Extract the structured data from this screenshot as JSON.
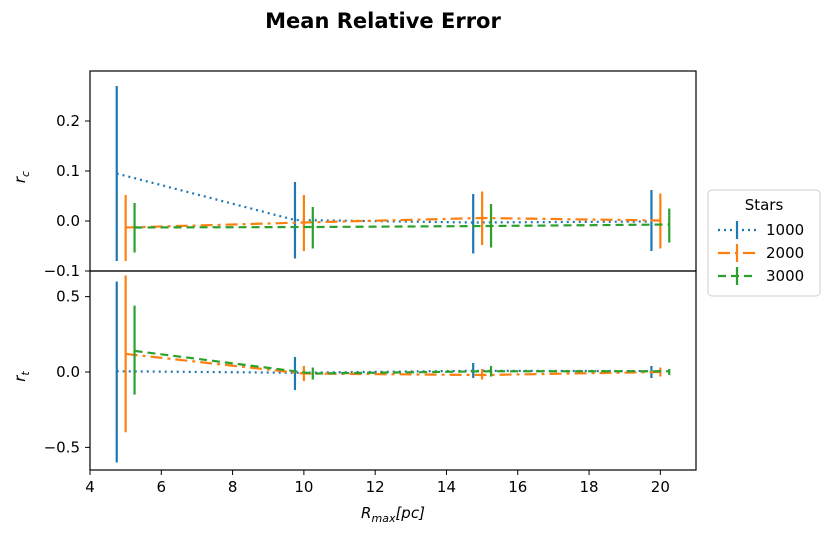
{
  "chart_data": {
    "type": "line",
    "title": "Mean Relative Error",
    "xlabel_main": "R",
    "xlabel_sub": "max",
    "xlabel_unit": "[pc]",
    "xlim": [
      4,
      21
    ],
    "xticks": [
      4,
      6,
      8,
      10,
      12,
      14,
      16,
      18,
      20
    ],
    "legend": {
      "title": "Stars",
      "placement": "outside-right"
    },
    "series_styles": [
      {
        "name": "1000",
        "color": "#1f77b4",
        "dash": "2,4"
      },
      {
        "name": "2000",
        "color": "#ff7f0e",
        "dash": "12,5,3,5"
      },
      {
        "name": "3000",
        "color": "#2ca02c",
        "dash": "8,5"
      }
    ],
    "panels": [
      {
        "id": "rc",
        "ylabel_main": "r",
        "ylabel_sub": "c",
        "ylim": [
          -0.1,
          0.3
        ],
        "yticks": [
          -0.1,
          0.0,
          0.1,
          0.2
        ],
        "ytick_labels": [
          "−0.1",
          "0.0",
          "0.1",
          "0.2"
        ],
        "series": [
          {
            "name": "1000",
            "x": [
              4.75,
              9.75,
              14.75,
              19.75
            ],
            "y": [
              0.095,
              0.002,
              -0.003,
              -0.001
            ],
            "err_low": [
              -0.08,
              -0.075,
              -0.065,
              -0.06
            ],
            "err_high": [
              0.27,
              0.078,
              0.054,
              0.062
            ]
          },
          {
            "name": "2000",
            "x": [
              5.0,
              10.0,
              15.0,
              20.0
            ],
            "y": [
              -0.013,
              -0.003,
              0.006,
              0.001
            ],
            "err_low": [
              -0.08,
              -0.06,
              -0.048,
              -0.055
            ],
            "err_high": [
              0.052,
              0.052,
              0.059,
              0.055
            ]
          },
          {
            "name": "3000",
            "x": [
              5.25,
              10.25,
              15.25,
              20.25
            ],
            "y": [
              -0.013,
              -0.012,
              -0.01,
              -0.007
            ],
            "err_low": [
              -0.063,
              -0.055,
              -0.053,
              -0.043
            ],
            "err_high": [
              0.036,
              0.028,
              0.034,
              0.025
            ]
          }
        ]
      },
      {
        "id": "rt",
        "ylabel_main": "r",
        "ylabel_sub": "t",
        "ylim": [
          -0.65,
          0.67
        ],
        "yticks": [
          -0.5,
          0.0,
          0.5
        ],
        "ytick_labels": [
          "−0.5",
          "0.0",
          "0.5"
        ],
        "series": [
          {
            "name": "1000",
            "x": [
              4.75,
              9.75,
              14.75,
              19.75
            ],
            "y": [
              0.005,
              -0.005,
              0.008,
              0.006
            ],
            "err_low": [
              -0.6,
              -0.12,
              -0.04,
              -0.04
            ],
            "err_high": [
              0.6,
              0.1,
              0.06,
              0.04
            ]
          },
          {
            "name": "2000",
            "x": [
              5.0,
              10.0,
              15.0,
              20.0
            ],
            "y": [
              0.12,
              -0.01,
              -0.02,
              0.0
            ],
            "err_low": [
              -0.4,
              -0.06,
              -0.05,
              -0.03
            ],
            "err_high": [
              0.64,
              0.04,
              0.02,
              0.03
            ]
          },
          {
            "name": "3000",
            "x": [
              5.25,
              10.25,
              15.25,
              20.25
            ],
            "y": [
              0.14,
              -0.01,
              0.005,
              0.005
            ],
            "err_low": [
              -0.15,
              -0.05,
              -0.03,
              -0.02
            ],
            "err_high": [
              0.44,
              0.03,
              0.04,
              0.02
            ]
          }
        ]
      }
    ]
  }
}
